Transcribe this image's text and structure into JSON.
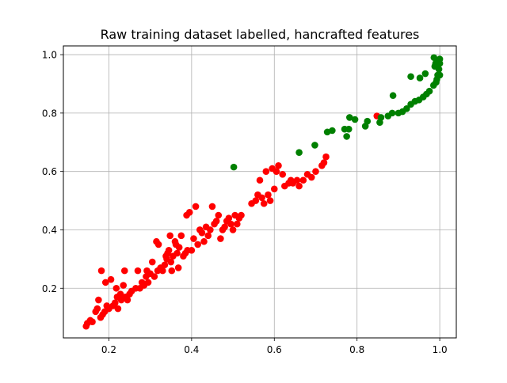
{
  "chart_data": {
    "type": "scatter",
    "title": "Raw training dataset labelled, hancrafted features",
    "xlabel": "",
    "ylabel": "",
    "xlim": [
      0.09,
      1.04
    ],
    "ylim": [
      0.03,
      1.03
    ],
    "xticks": [
      0.2,
      0.4,
      0.6,
      0.8,
      1.0
    ],
    "yticks": [
      0.2,
      0.4,
      0.6,
      0.8,
      1.0
    ],
    "xtick_labels": [
      "0.2",
      "0.4",
      "0.6",
      "0.8",
      "1.0"
    ],
    "ytick_labels": [
      "0.2",
      "0.4",
      "0.6",
      "0.8",
      "1.0"
    ],
    "grid": true,
    "legend": "none",
    "series": [
      {
        "color": "#ff0000",
        "points": [
          [
            0.145,
            0.07
          ],
          [
            0.148,
            0.08
          ],
          [
            0.155,
            0.09
          ],
          [
            0.16,
            0.085
          ],
          [
            0.168,
            0.12
          ],
          [
            0.172,
            0.13
          ],
          [
            0.175,
            0.16
          ],
          [
            0.18,
            0.1
          ],
          [
            0.182,
            0.26
          ],
          [
            0.185,
            0.11
          ],
          [
            0.19,
            0.12
          ],
          [
            0.192,
            0.22
          ],
          [
            0.195,
            0.14
          ],
          [
            0.2,
            0.13
          ],
          [
            0.205,
            0.23
          ],
          [
            0.21,
            0.14
          ],
          [
            0.215,
            0.15
          ],
          [
            0.218,
            0.2
          ],
          [
            0.22,
            0.17
          ],
          [
            0.222,
            0.13
          ],
          [
            0.228,
            0.18
          ],
          [
            0.23,
            0.16
          ],
          [
            0.235,
            0.21
          ],
          [
            0.238,
            0.26
          ],
          [
            0.24,
            0.17
          ],
          [
            0.245,
            0.16
          ],
          [
            0.25,
            0.18
          ],
          [
            0.255,
            0.19
          ],
          [
            0.265,
            0.2
          ],
          [
            0.27,
            0.26
          ],
          [
            0.275,
            0.2
          ],
          [
            0.28,
            0.22
          ],
          [
            0.285,
            0.21
          ],
          [
            0.29,
            0.24
          ],
          [
            0.292,
            0.26
          ],
          [
            0.295,
            0.22
          ],
          [
            0.3,
            0.25
          ],
          [
            0.305,
            0.29
          ],
          [
            0.31,
            0.24
          ],
          [
            0.315,
            0.36
          ],
          [
            0.318,
            0.26
          ],
          [
            0.32,
            0.35
          ],
          [
            0.325,
            0.27
          ],
          [
            0.33,
            0.26
          ],
          [
            0.335,
            0.28
          ],
          [
            0.338,
            0.31
          ],
          [
            0.34,
            0.3
          ],
          [
            0.342,
            0.32
          ],
          [
            0.345,
            0.33
          ],
          [
            0.348,
            0.38
          ],
          [
            0.35,
            0.29
          ],
          [
            0.352,
            0.26
          ],
          [
            0.355,
            0.31
          ],
          [
            0.36,
            0.36
          ],
          [
            0.362,
            0.35
          ],
          [
            0.365,
            0.32
          ],
          [
            0.368,
            0.27
          ],
          [
            0.37,
            0.34
          ],
          [
            0.375,
            0.38
          ],
          [
            0.38,
            0.31
          ],
          [
            0.385,
            0.32
          ],
          [
            0.388,
            0.45
          ],
          [
            0.39,
            0.33
          ],
          [
            0.395,
            0.46
          ],
          [
            0.4,
            0.33
          ],
          [
            0.405,
            0.37
          ],
          [
            0.41,
            0.48
          ],
          [
            0.415,
            0.35
          ],
          [
            0.42,
            0.4
          ],
          [
            0.425,
            0.39
          ],
          [
            0.43,
            0.36
          ],
          [
            0.435,
            0.41
          ],
          [
            0.44,
            0.38
          ],
          [
            0.445,
            0.4
          ],
          [
            0.45,
            0.48
          ],
          [
            0.455,
            0.42
          ],
          [
            0.46,
            0.43
          ],
          [
            0.465,
            0.45
          ],
          [
            0.47,
            0.37
          ],
          [
            0.475,
            0.4
          ],
          [
            0.48,
            0.41
          ],
          [
            0.485,
            0.43
          ],
          [
            0.49,
            0.44
          ],
          [
            0.495,
            0.42
          ],
          [
            0.5,
            0.4
          ],
          [
            0.505,
            0.45
          ],
          [
            0.51,
            0.42
          ],
          [
            0.515,
            0.44
          ],
          [
            0.52,
            0.45
          ],
          [
            0.545,
            0.49
          ],
          [
            0.555,
            0.5
          ],
          [
            0.56,
            0.52
          ],
          [
            0.565,
            0.57
          ],
          [
            0.57,
            0.51
          ],
          [
            0.575,
            0.49
          ],
          [
            0.58,
            0.6
          ],
          [
            0.585,
            0.52
          ],
          [
            0.59,
            0.5
          ],
          [
            0.595,
            0.61
          ],
          [
            0.6,
            0.54
          ],
          [
            0.605,
            0.6
          ],
          [
            0.61,
            0.62
          ],
          [
            0.62,
            0.59
          ],
          [
            0.625,
            0.55
          ],
          [
            0.635,
            0.56
          ],
          [
            0.64,
            0.57
          ],
          [
            0.645,
            0.56
          ],
          [
            0.655,
            0.57
          ],
          [
            0.66,
            0.55
          ],
          [
            0.67,
            0.57
          ],
          [
            0.68,
            0.59
          ],
          [
            0.69,
            0.58
          ],
          [
            0.7,
            0.6
          ],
          [
            0.715,
            0.62
          ],
          [
            0.72,
            0.63
          ],
          [
            0.725,
            0.65
          ],
          [
            0.848,
            0.79
          ]
        ]
      },
      {
        "color": "#008000",
        "points": [
          [
            0.502,
            0.615
          ],
          [
            0.66,
            0.665
          ],
          [
            0.698,
            0.69
          ],
          [
            0.728,
            0.735
          ],
          [
            0.74,
            0.74
          ],
          [
            0.77,
            0.745
          ],
          [
            0.775,
            0.72
          ],
          [
            0.78,
            0.745
          ],
          [
            0.782,
            0.785
          ],
          [
            0.795,
            0.778
          ],
          [
            0.82,
            0.755
          ],
          [
            0.825,
            0.772
          ],
          [
            0.855,
            0.768
          ],
          [
            0.858,
            0.785
          ],
          [
            0.875,
            0.79
          ],
          [
            0.885,
            0.8
          ],
          [
            0.887,
            0.86
          ],
          [
            0.9,
            0.8
          ],
          [
            0.91,
            0.805
          ],
          [
            0.92,
            0.815
          ],
          [
            0.93,
            0.83
          ],
          [
            0.93,
            0.925
          ],
          [
            0.94,
            0.84
          ],
          [
            0.95,
            0.845
          ],
          [
            0.952,
            0.92
          ],
          [
            0.96,
            0.855
          ],
          [
            0.965,
            0.935
          ],
          [
            0.968,
            0.865
          ],
          [
            0.975,
            0.875
          ],
          [
            0.985,
            0.895
          ],
          [
            0.986,
            0.99
          ],
          [
            0.988,
            0.96
          ],
          [
            0.99,
            0.97
          ],
          [
            0.991,
            0.905
          ],
          [
            0.993,
            0.915
          ],
          [
            0.995,
            0.93
          ],
          [
            0.996,
            0.975
          ],
          [
            0.998,
            0.95
          ],
          [
            1.0,
            0.985
          ],
          [
            1.0,
            0.93
          ],
          [
            1.0,
            0.97
          ]
        ]
      }
    ]
  }
}
